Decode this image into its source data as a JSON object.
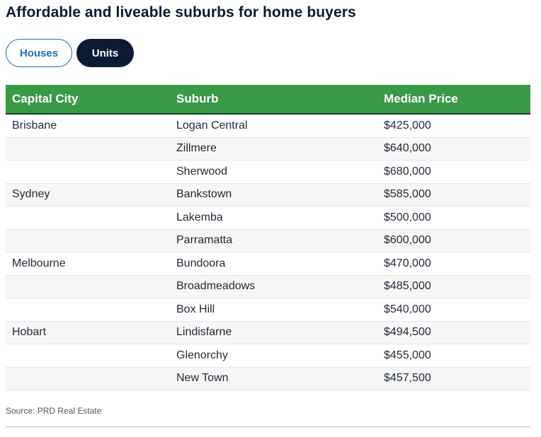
{
  "title": "Affordable and liveable suburbs for home buyers",
  "tabs": [
    {
      "label": "Houses",
      "active": false
    },
    {
      "label": "Units",
      "active": true
    }
  ],
  "table": {
    "headers": [
      "Capital City",
      "Suburb",
      "Median Price"
    ],
    "rows": [
      {
        "city": "Brisbane",
        "suburb": "Logan Central",
        "price": "$425,000"
      },
      {
        "city": "",
        "suburb": "Zillmere",
        "price": "$640,000"
      },
      {
        "city": "",
        "suburb": "Sherwood",
        "price": "$680,000"
      },
      {
        "city": "Sydney",
        "suburb": "Bankstown",
        "price": "$585,000"
      },
      {
        "city": "",
        "suburb": "Lakemba",
        "price": "$500,000"
      },
      {
        "city": "",
        "suburb": "Parramatta",
        "price": "$600,000"
      },
      {
        "city": "Melbourne",
        "suburb": "Bundoora",
        "price": "$470,000"
      },
      {
        "city": "",
        "suburb": "Broadmeadows",
        "price": "$485,000"
      },
      {
        "city": "",
        "suburb": "Box Hill",
        "price": "$540,000"
      },
      {
        "city": "Hobart",
        "suburb": "Lindisfarne",
        "price": "$494,500"
      },
      {
        "city": "",
        "suburb": "Glenorchy",
        "price": "$455,000"
      },
      {
        "city": "",
        "suburb": "New Town",
        "price": "$457,500"
      }
    ]
  },
  "source": "Source: PRD Real Estate",
  "colors": {
    "header_bg": "#3a9a47",
    "accent_blue": "#1d6fb8",
    "navy": "#0c1a33"
  }
}
